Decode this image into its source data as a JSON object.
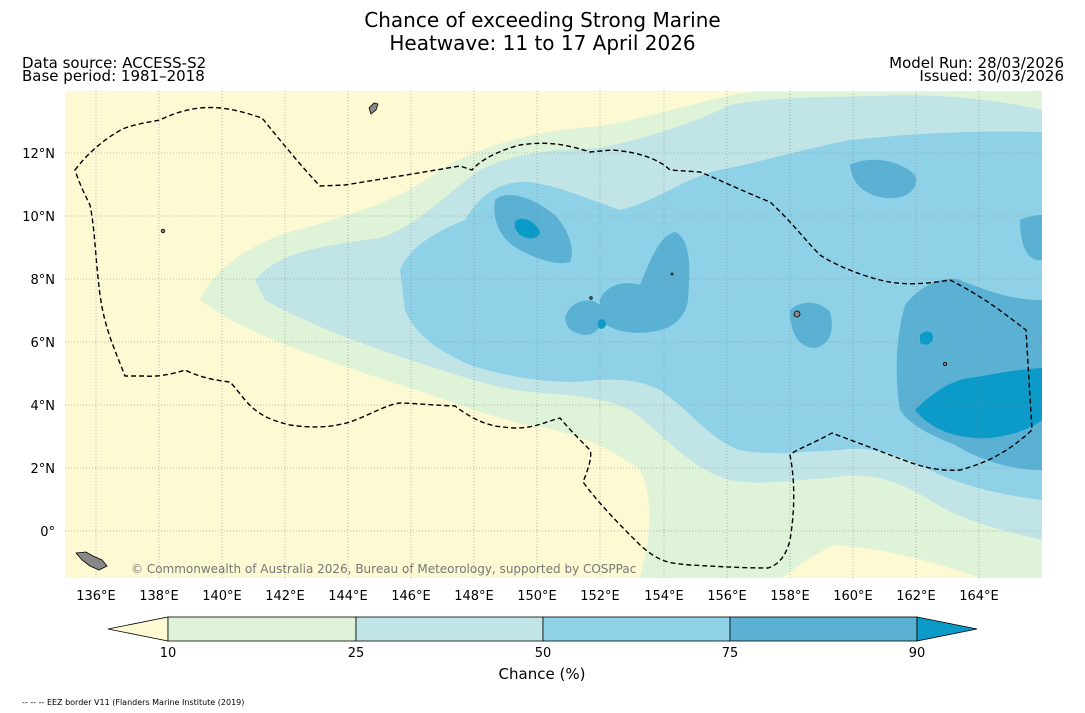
{
  "title_line1": "Chance of exceeding Strong Marine",
  "title_line2": "Heatwave: 11 to 17 April 2026",
  "data_source": "Data source: ACCESS-S2",
  "base_period": "Base period: 1981–2018",
  "model_run": "Model Run: 28/03/2026",
  "issued": "Issued: 30/03/2026",
  "copyright": "© Commonwealth of Australia 2026, Bureau of Meteorology, supported by COSPPac",
  "lon_labels": [
    "136°E",
    "138°E",
    "140°E",
    "142°E",
    "144°E",
    "146°E",
    "148°E",
    "150°E",
    "152°E",
    "154°E",
    "156°E",
    "158°E",
    "160°E",
    "162°E",
    "164°E"
  ],
  "lat_labels": [
    "12°N",
    "10°N",
    "8°N",
    "6°N",
    "4°N",
    "2°N",
    "0°"
  ],
  "colorbar": {
    "title": "Chance (%)",
    "ticks": [
      "10",
      "25",
      "50",
      "75",
      "90"
    ],
    "colors": [
      "#fdf9d3",
      "#dff3d8",
      "#c1e4e6",
      "#8fd2e8",
      "#5ab1d4",
      "#0c9ac9"
    ]
  },
  "eez_note": "-- -- -- EEZ border V11 (Flanders Marine Institute (2019)"
}
